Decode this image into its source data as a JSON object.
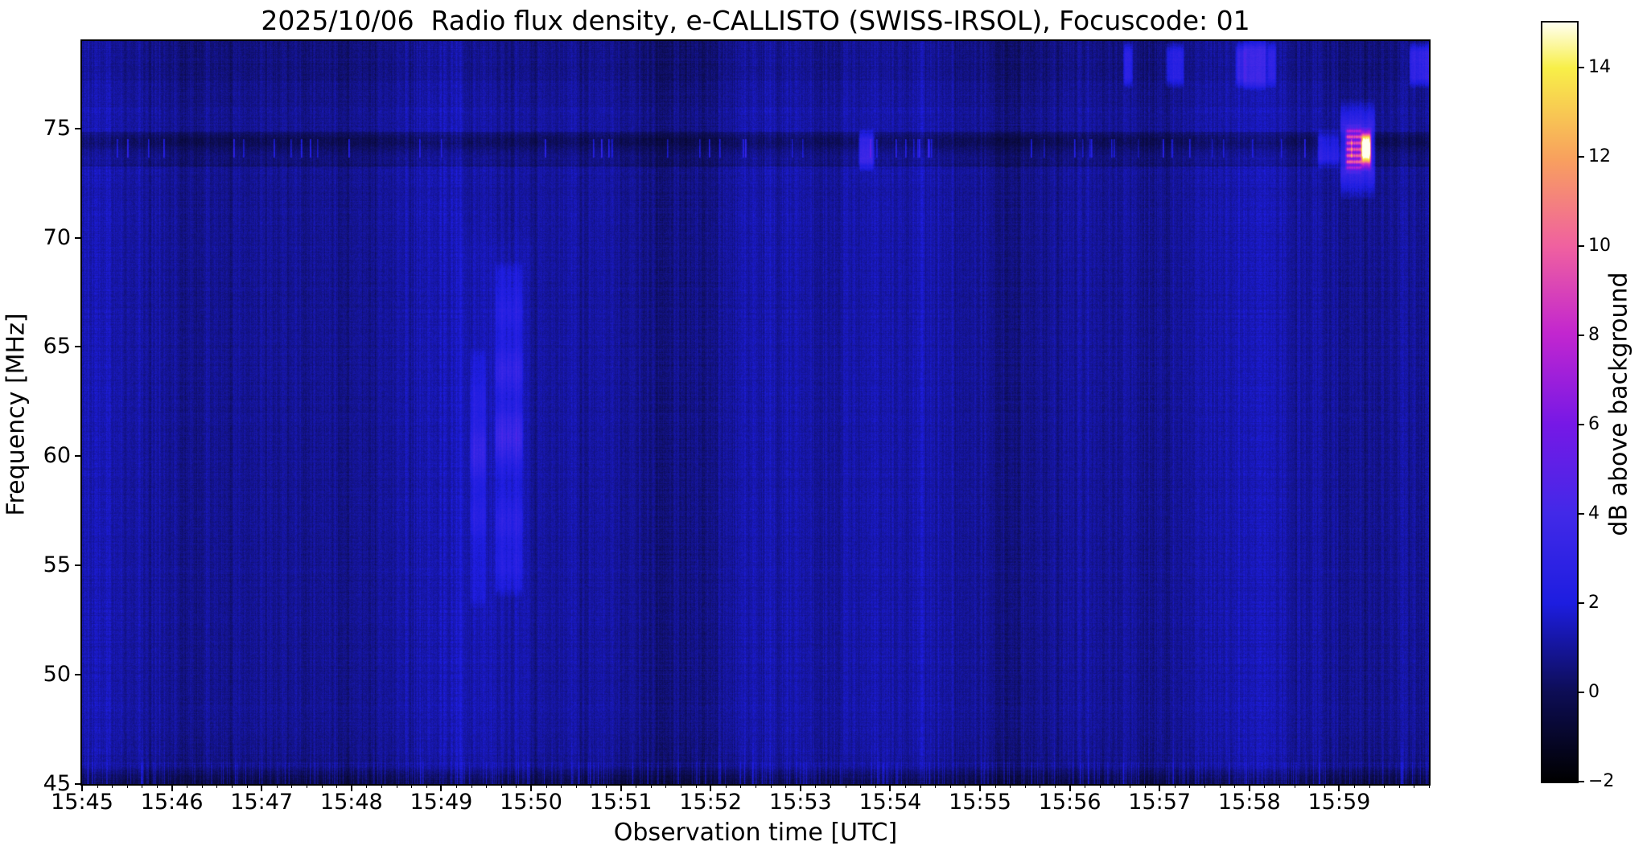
{
  "figure": {
    "title": "2025/10/06  Radio flux density, e-CALLISTO (SWISS-IRSOL), Focuscode: 01",
    "xaxis_label": "Observation time [UTC]",
    "yaxis_label": "Frequency [MHz]",
    "colorbar_label": "dB above background",
    "background_color": "#ffffff"
  },
  "chart_data": {
    "type": "heatmap",
    "subtype": "radio-spectrogram",
    "title": "2025/10/06  Radio flux density, e-CALLISTO (SWISS-IRSOL), Focuscode: 01",
    "xlabel": "Observation time [UTC]",
    "ylabel": "Frequency [MHz]",
    "colorbar_label": "dB above background",
    "x_range_utc": [
      "15:45:00",
      "16:00:00"
    ],
    "x_span_minutes": 15,
    "y_range_mhz": [
      45,
      79
    ],
    "color_range_db": [
      -2,
      15
    ],
    "grid": false,
    "x_ticks": [
      "15:45",
      "15:46",
      "15:47",
      "15:48",
      "15:49",
      "15:50",
      "15:51",
      "15:52",
      "15:53",
      "15:54",
      "15:55",
      "15:56",
      "15:57",
      "15:58",
      "15:59"
    ],
    "x_minor_tick_interval_seconds": 10,
    "y_ticks": [
      75,
      70,
      65,
      60,
      55,
      50,
      45
    ],
    "colorbar_ticks": [
      {
        "v": 14,
        "label": "14"
      },
      {
        "v": 12,
        "label": "12"
      },
      {
        "v": 10,
        "label": "10"
      },
      {
        "v": 8,
        "label": "8"
      },
      {
        "v": 6,
        "label": "6"
      },
      {
        "v": 4,
        "label": "4"
      },
      {
        "v": 2,
        "label": "2"
      },
      {
        "v": 0,
        "label": "0"
      },
      {
        "v": -2,
        "label": "−2"
      }
    ],
    "colormap": {
      "name": "gnuplot2-like",
      "stops": [
        [
          0.0,
          "#000000"
        ],
        [
          0.118,
          "#0d0d55"
        ],
        [
          0.235,
          "#1d1de0"
        ],
        [
          0.353,
          "#4229e8"
        ],
        [
          0.47,
          "#7618e6"
        ],
        [
          0.59,
          "#c226cf"
        ],
        [
          0.706,
          "#f0619f"
        ],
        [
          0.82,
          "#f8a05e"
        ],
        [
          0.94,
          "#f8ef48"
        ],
        [
          1.0,
          "#fffff0"
        ]
      ]
    },
    "background_level_db": 1.0,
    "noise": {
      "column_striation_db": 0.9,
      "pixel_noise_db": 0.55,
      "seed": 20251006
    },
    "bands": [
      {
        "name": "rfi-band-74mhz",
        "f0": 73.25,
        "f1": 74.85,
        "offset_db": -0.6,
        "specks": {
          "f0": 73.65,
          "f1": 74.5,
          "chance": 0.035,
          "amp_db": 2.2
        }
      },
      {
        "name": "quiet-band-above-77mhz",
        "f0": 77.15,
        "f1": 79.0,
        "offset_db": -0.28
      },
      {
        "name": "transition-76-77mhz",
        "f0": 76.0,
        "f1": 77.15,
        "offset_db": -0.12
      },
      {
        "name": "band-edge-45-46mhz",
        "f0": 45.0,
        "f1": 46.0,
        "offset_db": -1.5,
        "streaks": {
          "chance": 0.45,
          "amp_db": 2.3
        }
      }
    ],
    "features": [
      {
        "name": "faint-drifting-burst-streak-1",
        "kind": "burst",
        "t0": 4.34,
        "t1": 4.48,
        "f0": 53.5,
        "f1": 64.5,
        "amp_db": 1.0,
        "blobs": [
          {
            "f": 60.2,
            "w": 1.3,
            "amp": 1.5
          },
          {
            "f": 57.2,
            "w": 0.9,
            "amp": 0.7
          },
          {
            "f": 62.6,
            "w": 0.8,
            "amp": 0.5
          }
        ]
      },
      {
        "name": "faint-drifting-burst-streak-2",
        "kind": "burst",
        "t0": 4.62,
        "t1": 4.89,
        "f0": 54.0,
        "f1": 68.5,
        "amp_db": 1.25,
        "blobs": [
          {
            "f": 60.9,
            "w": 1.2,
            "amp": 1.5
          },
          {
            "f": 63.9,
            "w": 1.0,
            "amp": 1.0
          },
          {
            "f": 66.6,
            "w": 0.9,
            "amp": 0.5
          },
          {
            "f": 57.0,
            "w": 1.0,
            "amp": 0.7
          },
          {
            "f": 55.0,
            "w": 0.7,
            "amp": 0.4
          }
        ]
      },
      {
        "name": "burst-halo",
        "kind": "halo",
        "t0": 4.2,
        "t1": 5.0,
        "f0": 45.5,
        "f1": 69.5,
        "amp_db": 0.18,
        "blobs": []
      },
      {
        "name": "point-source-74mhz-1553",
        "kind": "blob",
        "t0": 8.67,
        "t1": 8.8,
        "f0": 73.5,
        "f1": 74.5,
        "amp_db": 2.8,
        "blobs": []
      },
      {
        "name": "blue-companion-1",
        "kind": "blob",
        "t0": 13.78,
        "t1": 13.87,
        "f0": 73.6,
        "f1": 74.5,
        "amp_db": 2.2,
        "blobs": []
      },
      {
        "name": "blue-companion-2",
        "kind": "blob",
        "t0": 13.9,
        "t1": 13.99,
        "f0": 73.6,
        "f1": 74.5,
        "amp_db": 2.0,
        "blobs": []
      },
      {
        "name": "bright-burst-halo-1559",
        "kind": "halo",
        "t0": 14.03,
        "t1": 14.38,
        "f0": 72.9,
        "f1": 75.2,
        "amp_db": 2.5,
        "blobs": []
      },
      {
        "name": "bright-burst-cell-a",
        "kind": "banded",
        "t0": 14.09,
        "t1": 14.23,
        "f0": 73.4,
        "f1": 74.7,
        "amp_db": 6.2,
        "blobs": []
      },
      {
        "name": "bright-burst-cell-b",
        "kind": "blob",
        "t0": 14.26,
        "t1": 14.34,
        "f0": 73.5,
        "f1": 74.6,
        "amp_db": 7.5,
        "blobs": []
      },
      {
        "name": "bright-burst-core",
        "kind": "blob",
        "t0": 14.27,
        "t1": 14.33,
        "f0": 73.9,
        "f1": 74.3,
        "amp_db": 9.0,
        "blobs": []
      },
      {
        "name": "blip-78mhz-1",
        "kind": "blob",
        "t0": 11.62,
        "t1": 11.68,
        "f0": 77.3,
        "f1": 78.5,
        "amp_db": 2.0,
        "blobs": []
      },
      {
        "name": "blip-78mhz-2",
        "kind": "blob",
        "t0": 12.09,
        "t1": 12.15,
        "f0": 77.3,
        "f1": 78.5,
        "amp_db": 1.8,
        "blobs": []
      },
      {
        "name": "blip-78mhz-3",
        "kind": "blob",
        "t0": 12.18,
        "t1": 12.25,
        "f0": 77.3,
        "f1": 78.5,
        "amp_db": 2.0,
        "blobs": []
      },
      {
        "name": "blip-78mhz-4",
        "kind": "blob",
        "t0": 12.87,
        "t1": 12.94,
        "f0": 77.3,
        "f1": 78.5,
        "amp_db": 2.2,
        "blobs": []
      },
      {
        "name": "blip-78mhz-5",
        "kind": "blob",
        "t0": 12.96,
        "t1": 13.17,
        "f0": 77.2,
        "f1": 78.6,
        "amp_db": 2.6,
        "blobs": []
      },
      {
        "name": "blip-78mhz-6",
        "kind": "blob",
        "t0": 13.22,
        "t1": 13.28,
        "f0": 77.3,
        "f1": 78.5,
        "amp_db": 1.9,
        "blobs": []
      },
      {
        "name": "blip-78mhz-7",
        "kind": "blob",
        "t0": 14.8,
        "t1": 14.87,
        "f0": 77.3,
        "f1": 78.5,
        "amp_db": 2.3,
        "blobs": []
      },
      {
        "name": "blip-78mhz-8",
        "kind": "blob",
        "t0": 14.9,
        "t1": 15.0,
        "f0": 77.3,
        "f1": 78.5,
        "amp_db": 2.5,
        "blobs": []
      }
    ]
  }
}
